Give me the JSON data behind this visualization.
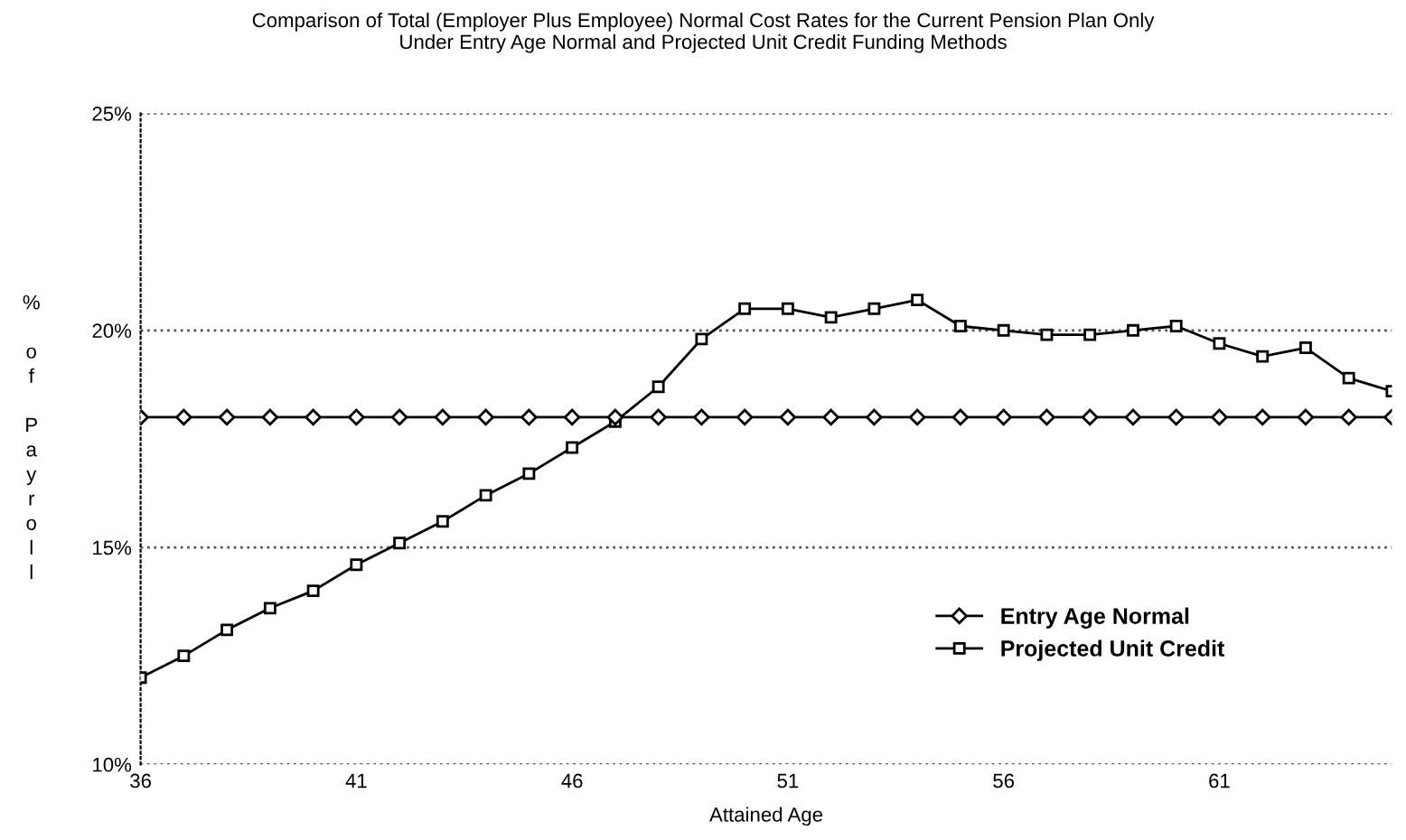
{
  "chart_data": {
    "type": "line",
    "title": "Comparison of Total (Employer Plus Employee) Normal Cost Rates for the Current Pension Plan Only\nUnder Entry Age Normal and Projected Unit Credit Funding Methods",
    "xlabel": "Attained Age",
    "ylabel": "% of Payroll",
    "x": [
      36,
      37,
      38,
      39,
      40,
      41,
      42,
      43,
      44,
      45,
      46,
      47,
      48,
      49,
      50,
      51,
      52,
      53,
      54,
      55,
      56,
      57,
      58,
      59,
      60,
      61,
      62,
      63,
      64,
      65
    ],
    "series": [
      {
        "name": "Entry Age Normal",
        "color": "#000000",
        "marker": "diamond",
        "values": [
          18.0,
          18.0,
          18.0,
          18.0,
          18.0,
          18.0,
          18.0,
          18.0,
          18.0,
          18.0,
          18.0,
          18.0,
          18.0,
          18.0,
          18.0,
          18.0,
          18.0,
          18.0,
          18.0,
          18.0,
          18.0,
          18.0,
          18.0,
          18.0,
          18.0,
          18.0,
          18.0,
          18.0,
          18.0,
          18.0
        ]
      },
      {
        "name": "Projected Unit Credit",
        "color": "#000000",
        "marker": "square",
        "values": [
          12.0,
          12.5,
          13.1,
          13.6,
          14.0,
          14.6,
          15.1,
          15.6,
          16.2,
          16.7,
          17.3,
          17.9,
          18.7,
          19.8,
          20.5,
          20.5,
          20.3,
          20.5,
          20.7,
          20.1,
          20.0,
          19.9,
          19.9,
          20.0,
          20.1,
          19.7,
          19.4,
          19.6,
          18.9,
          18.6
        ]
      }
    ],
    "xlim": [
      36,
      65
    ],
    "xticks": [
      36,
      41,
      46,
      51,
      56,
      61
    ],
    "ylim": [
      10,
      25
    ],
    "yticks": [
      {
        "value": 10,
        "label": "10%"
      },
      {
        "value": 15,
        "label": "15%"
      },
      {
        "value": 20,
        "label": "20%"
      },
      {
        "value": 25,
        "label": "25%"
      }
    ],
    "grid": "y",
    "legend": "bottom right",
    "line_style": "solid"
  }
}
